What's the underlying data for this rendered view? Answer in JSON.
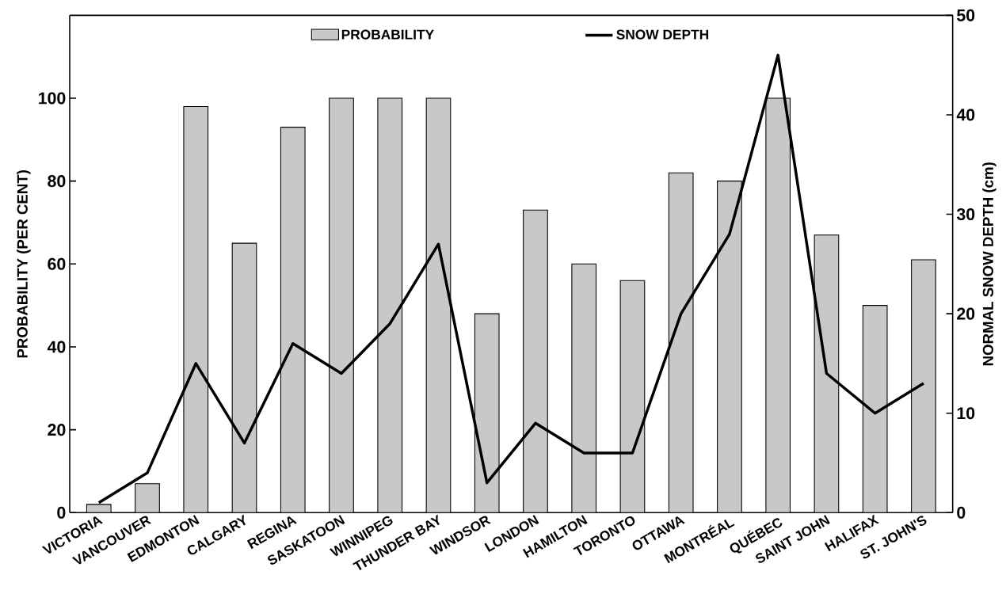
{
  "chart_data": {
    "type": "bar",
    "categories": [
      "VICTORIA",
      "VANCOUVER",
      "EDMONTON",
      "CALGARY",
      "REGINA",
      "SASKATOON",
      "WINNIPEG",
      "THUNDER BAY",
      "WINDSOR",
      "LONDON",
      "HAMILTON",
      "TORONTO",
      "OTTAWA",
      "MONTRÉAL",
      "QUÉBEC",
      "SAINT JOHN",
      "HALIFAX",
      "ST. JOHN'S"
    ],
    "series": [
      {
        "name": "PROBABILITY",
        "color": "#c8c8c8",
        "values": [
          2,
          7,
          98,
          65,
          93,
          100,
          100,
          100,
          48,
          73,
          60,
          56,
          82,
          80,
          100,
          67,
          50,
          61
        ]
      },
      {
        "name": "SNOW DEPTH",
        "type": "line",
        "axis": "y2",
        "color": "#000000",
        "values": [
          1,
          4,
          15,
          7,
          17,
          14,
          19,
          27,
          3,
          9,
          6,
          6,
          20,
          28,
          46,
          14,
          10,
          13
        ]
      }
    ],
    "ylabel": "PROBABILITY (PER CENT)",
    "y2label": "NORMAL SNOW DEPTH (cm)",
    "ylim": [
      0,
      120
    ],
    "yticks": [
      0,
      20,
      40,
      60,
      80,
      100
    ],
    "y2lim": [
      0,
      50
    ],
    "y2ticks": [
      0,
      10,
      20,
      30,
      40,
      50
    ],
    "legend": "top",
    "marker": "none",
    "line_style": "solid"
  }
}
